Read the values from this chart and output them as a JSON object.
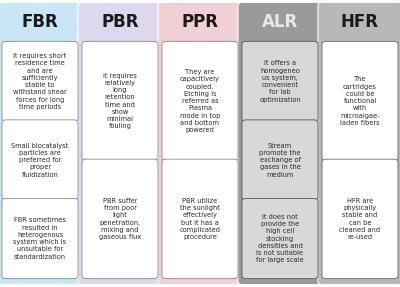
{
  "columns": [
    {
      "title": "FBR",
      "bg_color": "#c8e6f5",
      "title_color": "#1a1a1a",
      "box_bg": "#ffffff",
      "box_border": "#888888",
      "texts": [
        "It requires short\nresidence time\nand are\nsufficiently\nstable to\nwithstand shear\nforces for long\ntime periods",
        "Small biocatalyst\nparticles are\npreferred for\nproper\nfluidization",
        "FBR sometimes\nresulted in\nheterogenous\nsystem which is\nunsuitable for\nstandardization"
      ]
    },
    {
      "title": "PBR",
      "bg_color": "#ddd8ed",
      "title_color": "#1a1a1a",
      "box_bg": "#ffffff",
      "box_border": "#888888",
      "texts": [
        "It requires\nrelatively\nlong\nretention\ntime and\nshow\nminimal\nfouling",
        "PBR suffer\nfrom poor\nlight\npenetration,\nmixing and\ngaseous flux"
      ]
    },
    {
      "title": "PPR",
      "bg_color": "#f0d0d5",
      "title_color": "#1a1a1a",
      "box_bg": "#ffffff",
      "box_border": "#888888",
      "texts": [
        "They are\ncapacitively\ncoupled.\nEtching is\nreferred as\nPlasma\nmode in top\nand bottom\npowered",
        "PBR utilize\nthe sunlight\neffectively\nbut it has a\ncomplicated\nprocedure"
      ]
    },
    {
      "title": "ALR",
      "bg_color": "#9a9a9a",
      "title_color": "#e8e8e8",
      "box_bg": "#d8d8d8",
      "box_border": "#555555",
      "texts": [
        "It offers a\nhomogeneo\nus system,\nconvenient\nfor lab\noptimization",
        "Stream\npromote the\nexchange of\ngases in the\nmedium",
        "It does not\nprovide the\nhigh cell\nstocking\ndensities and\nis not suitable\nfor large scale"
      ]
    },
    {
      "title": "HFR",
      "bg_color": "#b8b8b8",
      "title_color": "#1a1a1a",
      "box_bg": "#ffffff",
      "box_border": "#666666",
      "texts": [
        "The\ncartridges\ncould be\nfunctional\nwith\nmicroalgae-\nladen fibers",
        "HFR are\nphysically\nstable and\ncan be\ncleaned and\nre-used"
      ]
    }
  ],
  "figsize": [
    4.0,
    2.87
  ],
  "dpi": 100,
  "title_fontsize": 12,
  "text_fontsize": 4.8
}
